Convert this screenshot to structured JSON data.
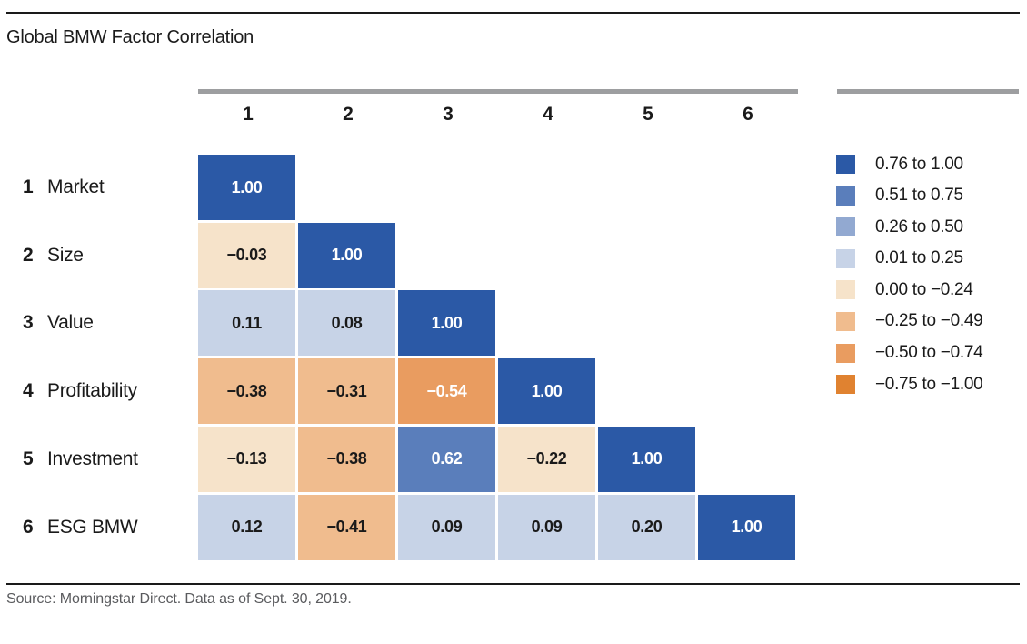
{
  "title": "Global BMW Factor Correlation",
  "source_note": "Source: Morningstar Direct. Data as of Sept. 30, 2019.",
  "colors": {
    "rule": "#1A1A1A",
    "header_bar": "#9D9EA0",
    "cell_text_dark": "#1A1A1A",
    "cell_text_light": "#FFFFFF",
    "source_text": "#5A5B5E"
  },
  "chart_data": {
    "type": "heatmap",
    "title": "Global BMW Factor Correlation",
    "shape": "lower-triangular correlation matrix",
    "column_headers": [
      "1",
      "2",
      "3",
      "4",
      "5",
      "6"
    ],
    "rows": [
      {
        "num": "1",
        "label": "Market",
        "cells": [
          {
            "value": 1.0,
            "text": "1.00"
          }
        ]
      },
      {
        "num": "2",
        "label": "Size",
        "cells": [
          {
            "value": -0.03,
            "text": "−0.03"
          },
          {
            "value": 1.0,
            "text": "1.00"
          }
        ]
      },
      {
        "num": "3",
        "label": "Value",
        "cells": [
          {
            "value": 0.11,
            "text": "0.11"
          },
          {
            "value": 0.08,
            "text": "0.08"
          },
          {
            "value": 1.0,
            "text": "1.00"
          }
        ]
      },
      {
        "num": "4",
        "label": "Profitability",
        "cells": [
          {
            "value": -0.38,
            "text": "−0.38"
          },
          {
            "value": -0.31,
            "text": "−0.31"
          },
          {
            "value": -0.54,
            "text": "−0.54"
          },
          {
            "value": 1.0,
            "text": "1.00"
          }
        ]
      },
      {
        "num": "5",
        "label": "Investment",
        "cells": [
          {
            "value": -0.13,
            "text": "−0.13"
          },
          {
            "value": -0.38,
            "text": "−0.38"
          },
          {
            "value": 0.62,
            "text": "0.62"
          },
          {
            "value": -0.22,
            "text": "−0.22"
          },
          {
            "value": 1.0,
            "text": "1.00"
          }
        ]
      },
      {
        "num": "6",
        "label": "ESG BMW",
        "cells": [
          {
            "value": 0.12,
            "text": "0.12"
          },
          {
            "value": -0.41,
            "text": "−0.41"
          },
          {
            "value": 0.09,
            "text": "0.09"
          },
          {
            "value": 0.09,
            "text": "0.09"
          },
          {
            "value": 0.2,
            "text": "0.20"
          },
          {
            "value": 1.0,
            "text": "1.00"
          }
        ]
      }
    ],
    "legend": [
      {
        "label": "0.76 to 1.00",
        "color": "#2B59A6"
      },
      {
        "label": "0.51 to 0.75",
        "color": "#5A7EBB"
      },
      {
        "label": "0.26 to 0.50",
        "color": "#92A9D1"
      },
      {
        "label": "0.01 to 0.25",
        "color": "#C7D3E7"
      },
      {
        "label": "0.00 to −0.24",
        "color": "#F6E3CA"
      },
      {
        "label": "−0.25 to −0.49",
        "color": "#F0BC8E"
      },
      {
        "label": "−0.50 to −0.74",
        "color": "#E99C60"
      },
      {
        "label": "−0.75 to −1.00",
        "color": "#E08230"
      }
    ],
    "legend_position": "right",
    "white_text_bins": [
      0,
      1,
      6,
      7
    ]
  }
}
